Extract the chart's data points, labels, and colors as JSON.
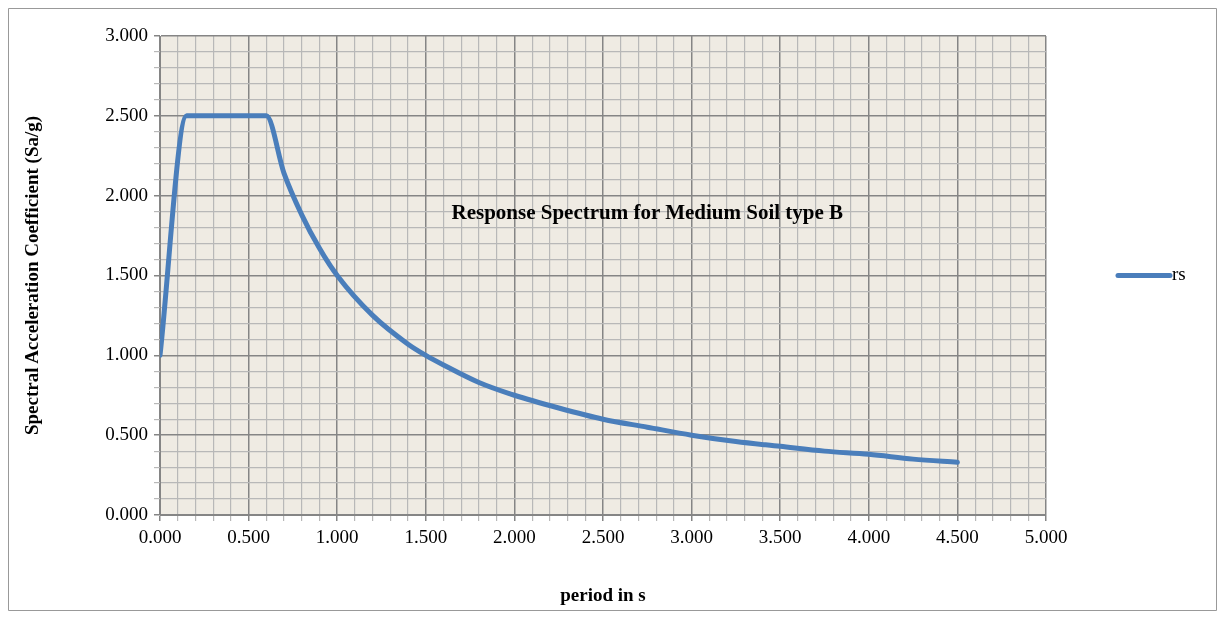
{
  "chart_data": {
    "type": "line",
    "title": "Response Spectrum for Medium Soil type B",
    "xlabel": "period in s",
    "ylabel": "Spectral Acceleration Coefficient (Sa/g)",
    "series": [
      {
        "name": "rs",
        "color": "#4a7ebb",
        "x": [
          0,
          0.15,
          0.2,
          0.3,
          0.4,
          0.5,
          0.55,
          0.6,
          0.7,
          0.8,
          0.9,
          1.0,
          1.2,
          1.4,
          1.5,
          1.6,
          1.8,
          2.0,
          2.25,
          2.5,
          2.75,
          3.0,
          3.25,
          3.5,
          3.75,
          4.0,
          4.25,
          4.5
        ],
        "values": [
          1.0,
          2.5,
          2.5,
          2.5,
          2.5,
          2.5,
          2.5,
          2.5,
          2.14,
          1.88,
          1.67,
          1.5,
          1.25,
          1.07,
          1.0,
          0.94,
          0.83,
          0.75,
          0.67,
          0.6,
          0.55,
          0.5,
          0.46,
          0.43,
          0.4,
          0.38,
          0.35,
          0.33
        ]
      }
    ],
    "xlim": [
      0,
      5
    ],
    "ylim": [
      0,
      3
    ],
    "xticks": [
      {
        "value": 0,
        "label": "0.000"
      },
      {
        "value": 0.1,
        "label": null
      },
      {
        "value": 0.2,
        "label": null
      },
      {
        "value": 0.3,
        "label": null
      },
      {
        "value": 0.4,
        "label": null
      },
      {
        "value": 0.5,
        "label": "0.500"
      },
      {
        "value": 0.6,
        "label": null
      },
      {
        "value": 0.7,
        "label": null
      },
      {
        "value": 0.8,
        "label": null
      },
      {
        "value": 0.9,
        "label": null
      },
      {
        "value": 1,
        "label": "1.000"
      },
      {
        "value": 1.1,
        "label": null
      },
      {
        "value": 1.2,
        "label": null
      },
      {
        "value": 1.3,
        "label": null
      },
      {
        "value": 1.4,
        "label": null
      },
      {
        "value": 1.5,
        "label": "1.500"
      },
      {
        "value": 1.6,
        "label": null
      },
      {
        "value": 1.7,
        "label": null
      },
      {
        "value": 1.8,
        "label": null
      },
      {
        "value": 1.9,
        "label": null
      },
      {
        "value": 2,
        "label": "2.000"
      },
      {
        "value": 2.1,
        "label": null
      },
      {
        "value": 2.2,
        "label": null
      },
      {
        "value": 2.3,
        "label": null
      },
      {
        "value": 2.4,
        "label": null
      },
      {
        "value": 2.5,
        "label": "2.500"
      },
      {
        "value": 2.6,
        "label": null
      },
      {
        "value": 2.7,
        "label": null
      },
      {
        "value": 2.8,
        "label": null
      },
      {
        "value": 2.9,
        "label": null
      },
      {
        "value": 3,
        "label": "3.000"
      },
      {
        "value": 3.1,
        "label": null
      },
      {
        "value": 3.2,
        "label": null
      },
      {
        "value": 3.3,
        "label": null
      },
      {
        "value": 3.4,
        "label": null
      },
      {
        "value": 3.5,
        "label": "3.500"
      },
      {
        "value": 3.6,
        "label": null
      },
      {
        "value": 3.7,
        "label": null
      },
      {
        "value": 3.8,
        "label": null
      },
      {
        "value": 3.9,
        "label": null
      },
      {
        "value": 4,
        "label": "4.000"
      },
      {
        "value": 4.1,
        "label": null
      },
      {
        "value": 4.2,
        "label": null
      },
      {
        "value": 4.3,
        "label": null
      },
      {
        "value": 4.4,
        "label": null
      },
      {
        "value": 4.5,
        "label": "4.500"
      },
      {
        "value": 4.6,
        "label": null
      },
      {
        "value": 4.7,
        "label": null
      },
      {
        "value": 4.8,
        "label": null
      },
      {
        "value": 4.9,
        "label": null
      },
      {
        "value": 5,
        "label": "5.000"
      }
    ],
    "yticks": [
      {
        "value": 0,
        "label": "0.000"
      },
      {
        "value": 0.1,
        "label": null
      },
      {
        "value": 0.2,
        "label": null
      },
      {
        "value": 0.3,
        "label": null
      },
      {
        "value": 0.4,
        "label": null
      },
      {
        "value": 0.5,
        "label": "0.500"
      },
      {
        "value": 0.6,
        "label": null
      },
      {
        "value": 0.7,
        "label": null
      },
      {
        "value": 0.8,
        "label": null
      },
      {
        "value": 0.9,
        "label": null
      },
      {
        "value": 1,
        "label": "1.000"
      },
      {
        "value": 1.1,
        "label": null
      },
      {
        "value": 1.2,
        "label": null
      },
      {
        "value": 1.3,
        "label": null
      },
      {
        "value": 1.4,
        "label": null
      },
      {
        "value": 1.5,
        "label": "1.500"
      },
      {
        "value": 1.6,
        "label": null
      },
      {
        "value": 1.7,
        "label": null
      },
      {
        "value": 1.8,
        "label": null
      },
      {
        "value": 1.9,
        "label": null
      },
      {
        "value": 2,
        "label": "2.000"
      },
      {
        "value": 2.1,
        "label": null
      },
      {
        "value": 2.2,
        "label": null
      },
      {
        "value": 2.3,
        "label": null
      },
      {
        "value": 2.4,
        "label": null
      },
      {
        "value": 2.5,
        "label": "2.500"
      },
      {
        "value": 2.6,
        "label": null
      },
      {
        "value": 2.7,
        "label": null
      },
      {
        "value": 2.8,
        "label": null
      },
      {
        "value": 2.9,
        "label": null
      },
      {
        "value": 3,
        "label": "3.000"
      }
    ],
    "grid": true,
    "legend": "right",
    "marker": "none",
    "line_style": "solid"
  }
}
